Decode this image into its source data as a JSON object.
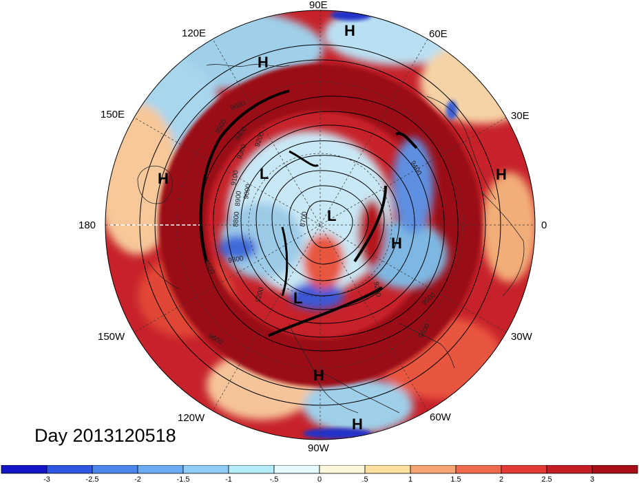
{
  "map": {
    "projection": "north-polar-stereographic",
    "longitude_labels": [
      {
        "id": "lon-90e",
        "text": "90E"
      },
      {
        "id": "lon-60e",
        "text": "60E"
      },
      {
        "id": "lon-30e",
        "text": "30E"
      },
      {
        "id": "lon-0",
        "text": "0"
      },
      {
        "id": "lon-30w",
        "text": "30W"
      },
      {
        "id": "lon-60w",
        "text": "60W"
      },
      {
        "id": "lon-90w",
        "text": "90W"
      },
      {
        "id": "lon-120w",
        "text": "120W"
      },
      {
        "id": "lon-150w",
        "text": "150W"
      },
      {
        "id": "lon-180",
        "text": "180"
      },
      {
        "id": "lon-150e",
        "text": "150E"
      },
      {
        "id": "lon-120e",
        "text": "120E"
      }
    ],
    "pressure_centers": [
      "H",
      "H",
      "H",
      "H",
      "H",
      "H",
      "L",
      "L",
      "L",
      "H"
    ],
    "contour_labels": [
      "9600",
      "9500",
      "9400",
      "9300",
      "9200",
      "9100",
      "9000",
      "8900",
      "8800",
      "9300",
      "9200",
      "9500",
      "9600",
      "9400",
      "9200",
      "9500",
      "9600",
      "8700"
    ],
    "anomaly_colors": {
      "strong_positive": "#a50f15",
      "positive": "#d7301f",
      "weak_positive": "#fc8d59",
      "neutral": "#fff7e6",
      "weak_negative": "#c6e5f5",
      "negative": "#6baed6",
      "strong_negative": "#1c2fc8"
    }
  },
  "footer": {
    "day_label": "Day 2013120518"
  },
  "colorbar": {
    "ticks": [
      "-3",
      "-2.5",
      "-2",
      "-1.5",
      "-1",
      "-.5",
      "0",
      ".5",
      "1",
      "1.5",
      "2",
      "2.5",
      "3"
    ],
    "colors": [
      "#1515c8",
      "#2f56e0",
      "#4a86ec",
      "#6aaaf2",
      "#90cdf6",
      "#b7ecfb",
      "#e6fbff",
      "#fff8dc",
      "#fde1a0",
      "#f5a572",
      "#ef6a4c",
      "#e23a35",
      "#c51d24",
      "#a50f15"
    ]
  }
}
